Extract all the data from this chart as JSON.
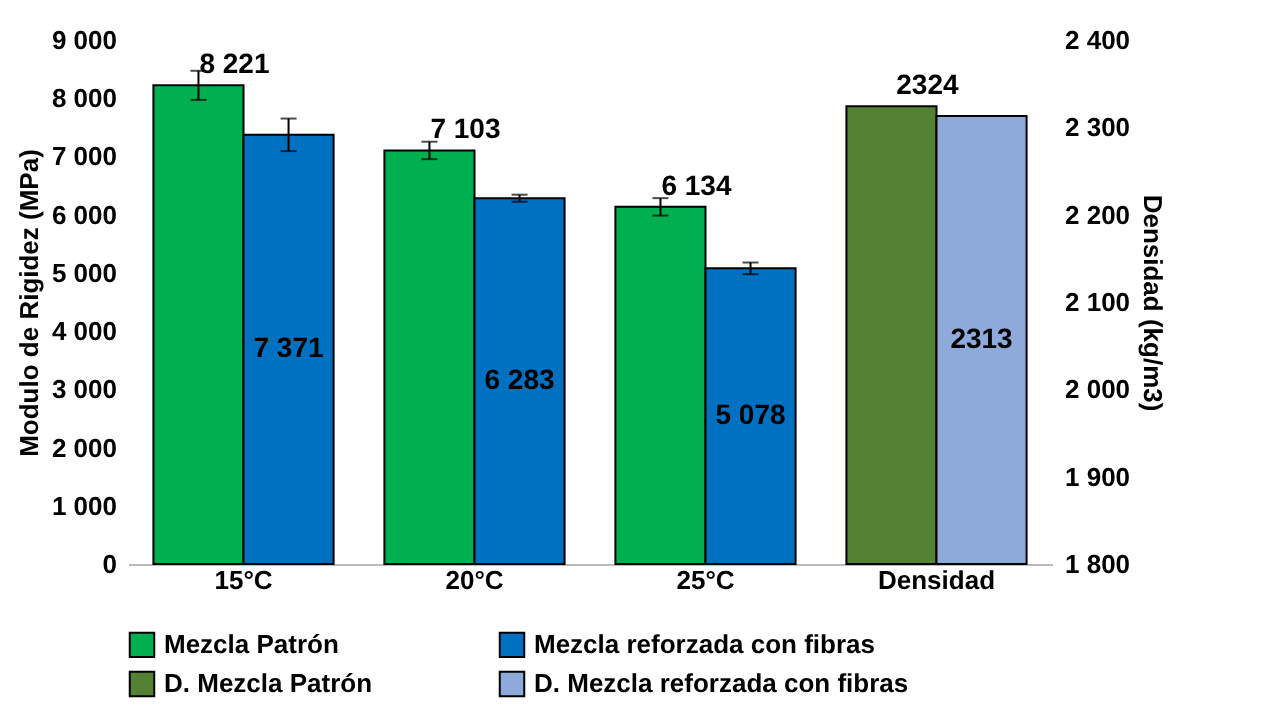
{
  "chart_data": {
    "type": "bar",
    "categories": [
      "15°C",
      "20°C",
      "25°C",
      "Densidad"
    ],
    "series": [
      {
        "name": "Mezcla Patrón",
        "color": "#00b050",
        "values": [
          8221,
          7103,
          6134,
          null
        ],
        "errors": [
          250,
          150,
          150,
          null
        ],
        "value_labels": [
          "8 221",
          "7 103",
          "6 134",
          null
        ]
      },
      {
        "name": "Mezcla reforzada con fibras",
        "color": "#0070c0",
        "values": [
          7371,
          6283,
          5078,
          null
        ],
        "errors": [
          280,
          60,
          100,
          null
        ],
        "value_labels": [
          "7 371",
          "6 283",
          "5 078",
          null
        ]
      },
      {
        "name": "D. Mezcla Patrón",
        "color": "#548235",
        "axis": "y2",
        "values": [
          null,
          null,
          null,
          2324
        ],
        "value_labels": [
          null,
          null,
          null,
          "2324"
        ]
      },
      {
        "name": "D. Mezcla reforzada con fibras",
        "color": "#8eaadb",
        "axis": "y2",
        "values": [
          null,
          null,
          null,
          2313
        ],
        "value_labels": [
          null,
          null,
          null,
          "2313"
        ]
      }
    ],
    "ylabel": "Modulo de Rigidez (MPa)",
    "y2label": "Densidad (kg/m3)",
    "ylim": [
      0,
      9000
    ],
    "yticks": [
      0,
      {
        "value": 1000,
        "label": "1 000"
      },
      {
        "value": 2000,
        "label": "2 000"
      },
      {
        "value": 3000,
        "label": "3 000"
      },
      {
        "value": 4000,
        "label": "4 000"
      },
      {
        "value": 5000,
        "label": "5 000"
      },
      {
        "value": 6000,
        "label": "6 000"
      },
      {
        "value": 7000,
        "label": "7 000"
      },
      {
        "value": 8000,
        "label": "8 000"
      },
      {
        "value": 9000,
        "label": "9 000"
      }
    ],
    "y2lim": [
      1800,
      2400
    ],
    "y2ticks": [
      {
        "value": 1800,
        "label": "1 800"
      },
      {
        "value": 1900,
        "label": "1 900"
      },
      {
        "value": 2000,
        "label": "2 000"
      },
      {
        "value": 2100,
        "label": "2 100"
      },
      {
        "value": 2200,
        "label": "2 200"
      },
      {
        "value": 2300,
        "label": "2 300"
      },
      {
        "value": 2400,
        "label": "2 400"
      }
    ],
    "grid": false,
    "legend": "bottom"
  }
}
